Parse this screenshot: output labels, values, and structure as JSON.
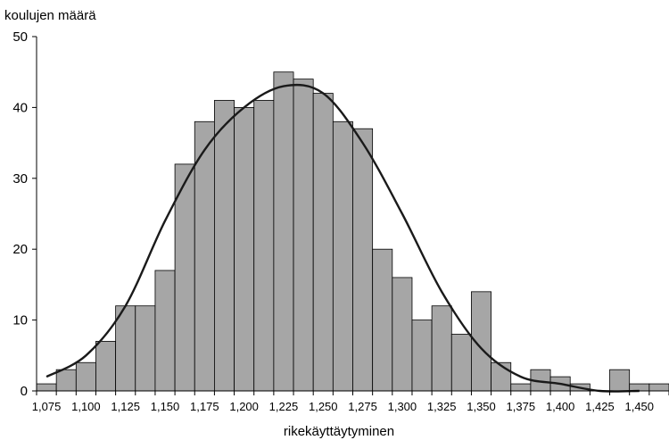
{
  "chart_data": {
    "type": "bar",
    "xlabel": "rikekäyttäytyminen",
    "ylabel": "koulujen määrä",
    "ylim": [
      0,
      50
    ],
    "y_ticks": [
      "0",
      "10",
      "20",
      "30",
      "40",
      "50"
    ],
    "x_tick_labels": [
      "1,075",
      "1,100",
      "1,125",
      "1,150",
      "1,175",
      "1,200",
      "1,225",
      "1,250",
      "1,275",
      "1,300",
      "1,325",
      "1,350",
      "1,375",
      "1,400",
      "1,425",
      "1,450"
    ],
    "bins": [
      1.075,
      1.0875,
      1.1,
      1.1125,
      1.125,
      1.1375,
      1.15,
      1.1625,
      1.175,
      1.1875,
      1.2,
      1.2125,
      1.225,
      1.2375,
      1.25,
      1.2625,
      1.275,
      1.2875,
      1.3,
      1.3125,
      1.325,
      1.3375,
      1.35,
      1.3625,
      1.375,
      1.3875,
      1.4,
      1.4125,
      1.425,
      1.4375,
      1.45,
      1.4625
    ],
    "values": [
      1,
      3,
      4,
      7,
      12,
      12,
      17,
      32,
      38,
      41,
      40,
      41,
      45,
      44,
      42,
      38,
      37,
      20,
      16,
      10,
      12,
      8,
      14,
      4,
      1,
      3,
      2,
      1,
      0,
      3,
      1,
      1
    ],
    "bar_color": "#a6a6a6",
    "curve": {
      "type": "normal-fit",
      "x": [
        1.075,
        1.1,
        1.125,
        1.15,
        1.175,
        1.2,
        1.225,
        1.25,
        1.275,
        1.3,
        1.325,
        1.35,
        1.375,
        1.4,
        1.425,
        1.45
      ],
      "y": [
        2,
        5,
        12,
        24,
        34,
        40,
        43,
        42,
        35,
        25,
        14,
        6,
        2,
        1,
        0,
        0
      ]
    },
    "grid": false,
    "legend": "none"
  }
}
